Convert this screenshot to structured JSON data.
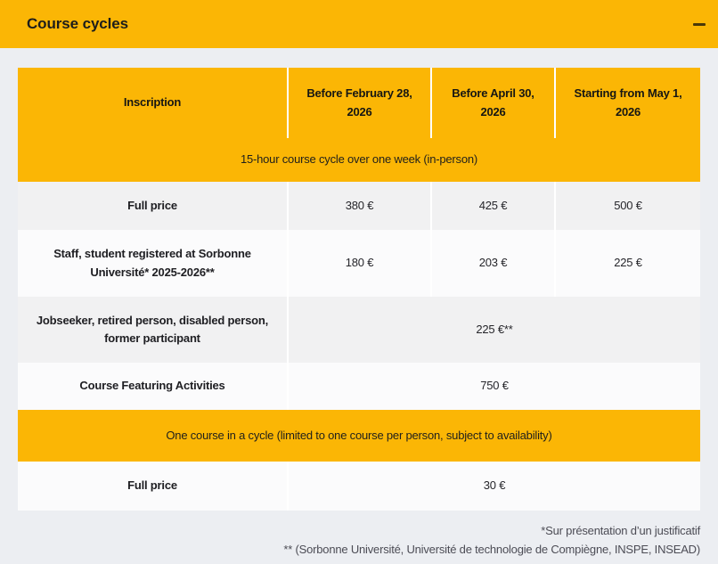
{
  "panel": {
    "title": "Course cycles",
    "collapse_icon": "minus"
  },
  "colors": {
    "amber": "#FBB605",
    "page_background": "#ECEEF2",
    "row_gray": "#F1F1F2",
    "row_white": "#FBFBFC",
    "divider": "#FFFFFF",
    "text_dark": "#1D1D1B",
    "footnote_text": "#4C4C55"
  },
  "table": {
    "header": {
      "col1": "Inscription",
      "col2": "Before February 28, 2026",
      "col3": "Before April 30, 2026",
      "col4": "Starting from May 1, 2026"
    },
    "section1": "15-hour course cycle over one week (in-person)",
    "rows1": [
      {
        "label": "Full price",
        "c1": "380 €",
        "c2": "425 €",
        "c3": "500 €"
      },
      {
        "label": "Staff, student registered at Sorbonne Université* 2025-2026**",
        "c1": "180 €",
        "c2": "203 €",
        "c3": "225 €"
      },
      {
        "label": "Jobseeker, retired person, disabled person, former participant",
        "merged": "225 €**"
      },
      {
        "label": "Course Featuring Activities",
        "merged": "750 €"
      }
    ],
    "section2": "One course in a cycle (limited to one course per person, subject to availability)",
    "rows2": [
      {
        "label": "Full price",
        "merged": "30 €"
      }
    ]
  },
  "footnotes": {
    "line1": "*Sur présentation d’un justificatif",
    "line2": "** (Sorbonne Université, Université de technologie de Compiègne, INSPE, INSEAD)"
  }
}
